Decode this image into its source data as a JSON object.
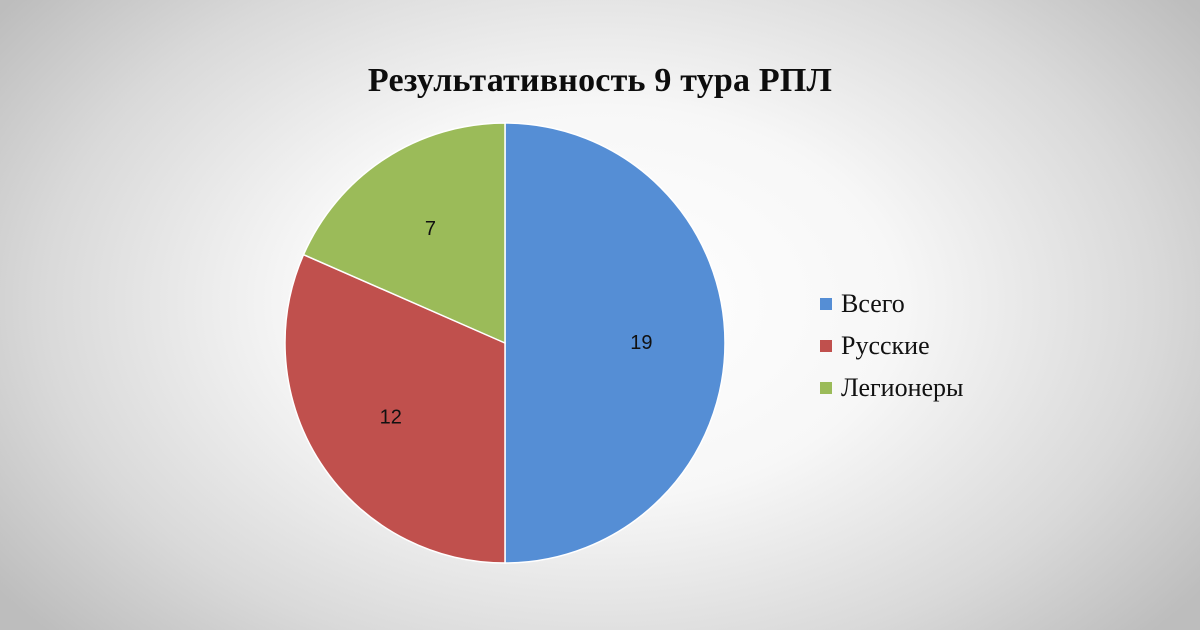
{
  "chart_data": {
    "type": "pie",
    "title": "Результативность 9 тура РПЛ",
    "categories": [
      "Всего",
      "Русские",
      "Легионеры"
    ],
    "values": [
      19,
      12,
      7
    ],
    "colors": [
      "#558ed5",
      "#c0504d",
      "#9bbb59"
    ],
    "data_labels": [
      "19",
      "12",
      "7"
    ],
    "legend_position": "right",
    "start_angle_deg": 0,
    "direction": "clockwise"
  }
}
